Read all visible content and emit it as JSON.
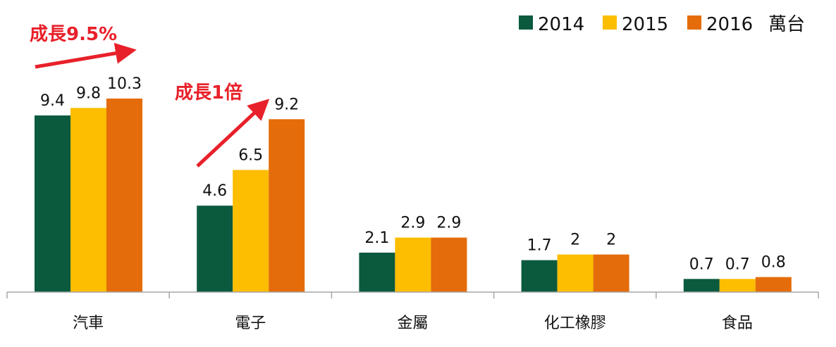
{
  "chart_data": {
    "type": "bar",
    "categories": [
      "汽車",
      "電子",
      "金屬",
      "化工橡膠",
      "食品"
    ],
    "series": [
      {
        "name": "2014",
        "color": "#0b5a3e",
        "values": [
          9.4,
          4.6,
          2.1,
          1.7,
          0.7
        ],
        "labels": [
          "9.4",
          "4.6",
          "2.1",
          "1.7",
          "0.7"
        ]
      },
      {
        "name": "2015",
        "color": "#fdbd00",
        "values": [
          9.8,
          6.5,
          2.9,
          2,
          0.7
        ],
        "labels": [
          "9.8",
          "6.5",
          "2.9",
          "2",
          "0.7"
        ]
      },
      {
        "name": "2016",
        "color": "#e46c0a",
        "values": [
          10.3,
          9.2,
          2.9,
          2,
          0.8
        ],
        "labels": [
          "10.3",
          "9.2",
          "2.9",
          "2",
          "0.8"
        ]
      }
    ],
    "unit": "萬台",
    "ylim": [
      0,
      10.3
    ],
    "legend_position": "top-right",
    "grid": false,
    "annotations": [
      {
        "text": "成長9.5%",
        "color": "#e8202a",
        "category": "汽車"
      },
      {
        "text": "成長1倍",
        "color": "#e8202a",
        "category": "電子"
      }
    ]
  }
}
